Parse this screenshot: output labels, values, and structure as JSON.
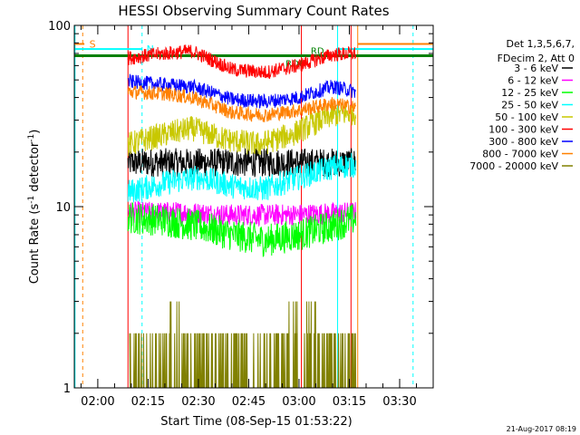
{
  "chart_data": {
    "type": "line",
    "title": "HESSI Observing Summary Count Rates",
    "xlabel": "Start Time (08-Sep-15 01:53:22)",
    "ylabel_main": "Count Rate (s",
    "ylabel_sup": "-1",
    "ylabel_tail": " detector",
    "ylabel_sup2": "-1",
    "ylabel_close": ")",
    "yscale": "log",
    "ylim": [
      1,
      100
    ],
    "xlim_minutes": [
      113,
      220
    ],
    "xticks": [
      {
        "m": 120,
        "label": "02:00"
      },
      {
        "m": 135,
        "label": "02:15"
      },
      {
        "m": 150,
        "label": "02:30"
      },
      {
        "m": 165,
        "label": "02:45"
      },
      {
        "m": 180,
        "label": "03:00"
      },
      {
        "m": 195,
        "label": "03:15"
      },
      {
        "m": 210,
        "label": "03:30"
      }
    ],
    "yticks": [
      {
        "v": 1,
        "label": "1"
      },
      {
        "v": 10,
        "label": "10"
      },
      {
        "v": 100,
        "label": "100"
      }
    ],
    "legend_header": [
      "Det 1,3,5,6,7,",
      "FDecim 2, Att 0"
    ],
    "data_window_minutes": [
      129,
      197
    ],
    "series": [
      {
        "name": "3 - 6 keV",
        "color": "#000000",
        "values": [
          [
            129,
            17.5
          ],
          [
            145,
            17.5
          ],
          [
            160,
            17.5
          ],
          [
            175,
            17.5
          ],
          [
            197,
            17.5
          ]
        ]
      },
      {
        "name": "6 - 12 keV",
        "color": "#ff00ff",
        "values": [
          [
            129,
            9.3
          ],
          [
            145,
            9.3
          ],
          [
            160,
            9.0
          ],
          [
            175,
            9.0
          ],
          [
            185,
            9.1
          ],
          [
            197,
            9.3
          ]
        ]
      },
      {
        "name": "12 - 25 keV",
        "color": "#00ff00",
        "values": [
          [
            129,
            8.7
          ],
          [
            140,
            8.4
          ],
          [
            150,
            7.8
          ],
          [
            160,
            7.0
          ],
          [
            170,
            6.5
          ],
          [
            180,
            7.0
          ],
          [
            190,
            7.8
          ],
          [
            197,
            8.6
          ]
        ]
      },
      {
        "name": "25 - 50 keV",
        "color": "#00ffff",
        "values": [
          [
            129,
            12.0
          ],
          [
            140,
            13.5
          ],
          [
            150,
            14.5
          ],
          [
            160,
            13.0
          ],
          [
            170,
            12.5
          ],
          [
            180,
            14.5
          ],
          [
            190,
            16.5
          ],
          [
            197,
            17.0
          ]
        ]
      },
      {
        "name": "50 - 100 keV",
        "color": "#c8c800",
        "values": [
          [
            129,
            22.0
          ],
          [
            140,
            25.0
          ],
          [
            148,
            27.0
          ],
          [
            158,
            23.5
          ],
          [
            168,
            22.0
          ],
          [
            178,
            25.0
          ],
          [
            190,
            32.0
          ],
          [
            197,
            33.0
          ]
        ]
      },
      {
        "name": "100 - 300 keV",
        "color": "#ff0000",
        "values": [
          [
            129,
            66.0
          ],
          [
            140,
            70.0
          ],
          [
            148,
            72.0
          ],
          [
            160,
            57.0
          ],
          [
            170,
            55.0
          ],
          [
            180,
            60.0
          ],
          [
            190,
            69.0
          ],
          [
            197,
            70.0
          ]
        ]
      },
      {
        "name": "300 - 800 keV",
        "color": "#0000ff",
        "values": [
          [
            129,
            49.0
          ],
          [
            140,
            47.0
          ],
          [
            148,
            46.0
          ],
          [
            160,
            39.0
          ],
          [
            170,
            38.0
          ],
          [
            180,
            40.0
          ],
          [
            190,
            46.0
          ],
          [
            197,
            43.0
          ]
        ]
      },
      {
        "name": "800 - 7000 keV",
        "color": "#ff8000",
        "values": [
          [
            129,
            43.0
          ],
          [
            140,
            42.0
          ],
          [
            148,
            40.0
          ],
          [
            160,
            33.0
          ],
          [
            170,
            32.0
          ],
          [
            180,
            34.0
          ],
          [
            190,
            37.0
          ],
          [
            197,
            35.0
          ]
        ]
      },
      {
        "name": "7000 - 20000 keV",
        "color": "#808000",
        "values": [
          [
            129,
            1.6
          ],
          [
            145,
            1.6
          ],
          [
            160,
            1.6
          ],
          [
            175,
            1.6
          ],
          [
            197,
            1.6
          ]
        ]
      }
    ],
    "flags": {
      "s_label": "S",
      "n_label": "N",
      "rd_labels": [
        "RD6",
        "RD"
      ],
      "s_level": 79,
      "n_level": 74,
      "rd_level": 68,
      "s_color": "#ff8000",
      "n_color": "#00ffff",
      "rd_color": "#008000"
    },
    "timestamp": "21-Aug-2017 08:19"
  }
}
